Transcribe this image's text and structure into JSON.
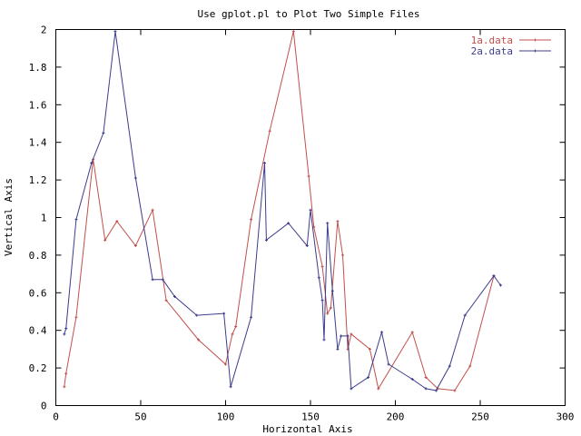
{
  "chart_data": {
    "type": "line",
    "title": "Use gplot.pl to Plot Two Simple Files",
    "xlabel": "Horizontal Axis",
    "ylabel": "Vertical Axis",
    "xlim": [
      0,
      300
    ],
    "ylim": [
      0,
      2
    ],
    "x_ticks": [
      "0",
      "50",
      "100",
      "150",
      "200",
      "250",
      "300"
    ],
    "y_ticks": [
      "0",
      "0.2",
      "0.4",
      "0.6",
      "0.8",
      "1",
      "1.2",
      "1.4",
      "1.6",
      "1.8",
      "2"
    ],
    "grid": false,
    "legend_position": "top-right",
    "series": [
      {
        "name": "1a.data",
        "color": "#c0504d",
        "points": [
          [
            5,
            0.1
          ],
          [
            6,
            0.17
          ],
          [
            12,
            0.47
          ],
          [
            22,
            1.31
          ],
          [
            29,
            0.88
          ],
          [
            36,
            0.98
          ],
          [
            47,
            0.85
          ],
          [
            57,
            1.04
          ],
          [
            65,
            0.56
          ],
          [
            84,
            0.35
          ],
          [
            100,
            0.22
          ],
          [
            104,
            0.38
          ],
          [
            106,
            0.42
          ],
          [
            115,
            0.99
          ],
          [
            126,
            1.46
          ],
          [
            140,
            1.99
          ],
          [
            149,
            1.22
          ],
          [
            152,
            0.95
          ],
          [
            157,
            0.74
          ],
          [
            160,
            0.49
          ],
          [
            162,
            0.52
          ],
          [
            166,
            0.98
          ],
          [
            169,
            0.8
          ],
          [
            172,
            0.3
          ],
          [
            174,
            0.38
          ],
          [
            185,
            0.3
          ],
          [
            190,
            0.09
          ],
          [
            210,
            0.39
          ],
          [
            218,
            0.15
          ],
          [
            225,
            0.09
          ],
          [
            235,
            0.08
          ],
          [
            244,
            0.21
          ],
          [
            258,
            0.69
          ]
        ]
      },
      {
        "name": "2a.data",
        "color": "#3c3c8c",
        "points": [
          [
            5,
            0.38
          ],
          [
            6,
            0.41
          ],
          [
            12,
            0.99
          ],
          [
            21,
            1.29
          ],
          [
            28,
            1.45
          ],
          [
            35,
            1.99
          ],
          [
            47,
            1.21
          ],
          [
            57,
            0.67
          ],
          [
            63,
            0.67
          ],
          [
            70,
            0.58
          ],
          [
            83,
            0.48
          ],
          [
            99,
            0.49
          ],
          [
            103,
            0.1
          ],
          [
            115,
            0.47
          ],
          [
            123,
            1.29
          ],
          [
            124,
            0.88
          ],
          [
            137,
            0.97
          ],
          [
            148,
            0.85
          ],
          [
            150,
            1.04
          ],
          [
            155,
            0.68
          ],
          [
            157,
            0.56
          ],
          [
            158,
            0.35
          ],
          [
            160,
            0.97
          ],
          [
            163,
            0.61
          ],
          [
            166,
            0.3
          ],
          [
            168,
            0.37
          ],
          [
            172,
            0.37
          ],
          [
            174,
            0.09
          ],
          [
            184,
            0.15
          ],
          [
            192,
            0.39
          ],
          [
            196,
            0.22
          ],
          [
            210,
            0.14
          ],
          [
            218,
            0.09
          ],
          [
            224,
            0.08
          ],
          [
            232,
            0.21
          ],
          [
            241,
            0.48
          ],
          [
            258,
            0.69
          ],
          [
            262,
            0.64
          ]
        ]
      }
    ]
  }
}
